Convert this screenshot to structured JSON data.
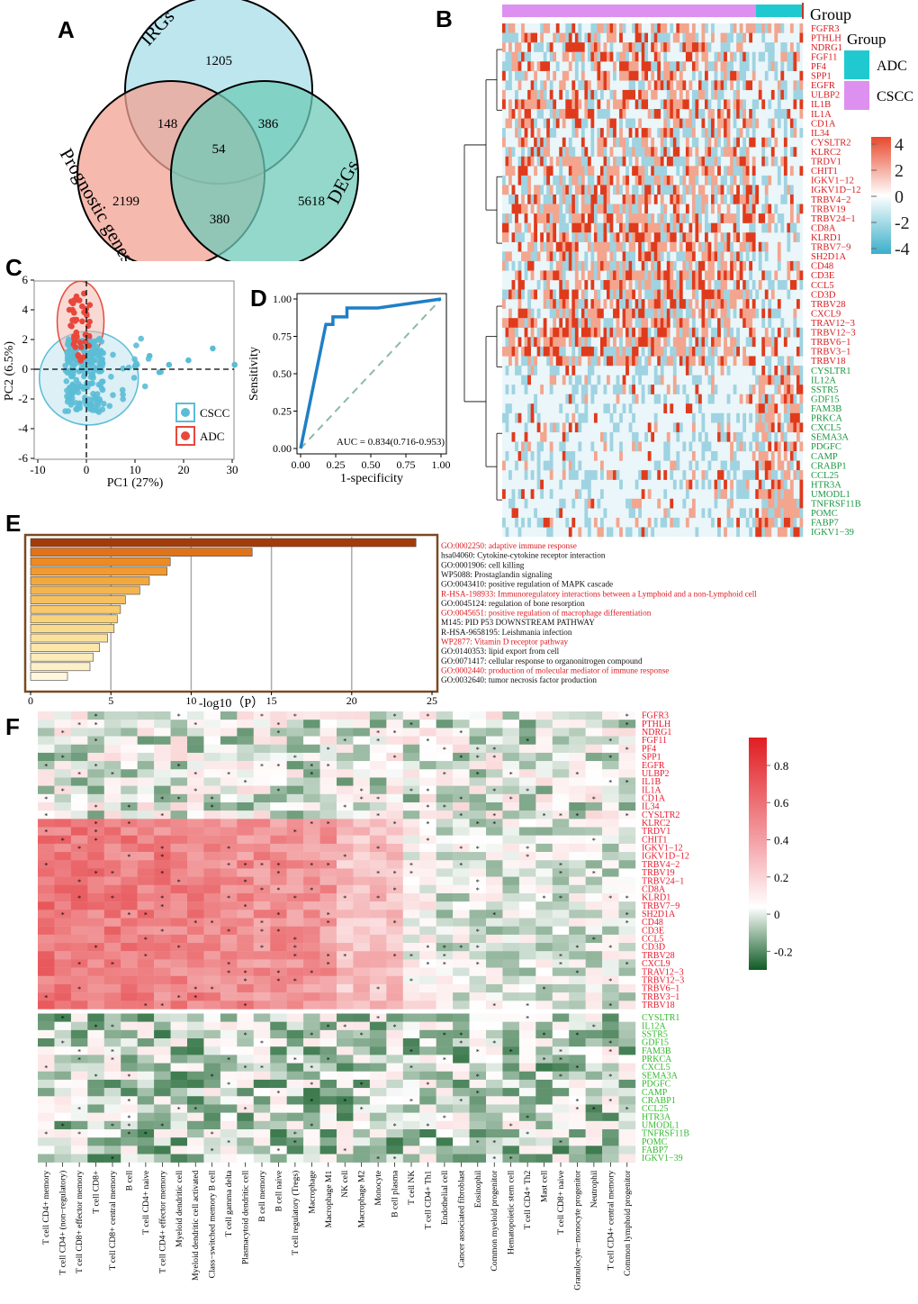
{
  "panel_labels": {
    "a": "A",
    "b": "B",
    "c": "C",
    "d": "D",
    "e": "E",
    "f": "F"
  },
  "venn": {
    "sets": [
      {
        "name": "IRGs",
        "color": "#a8dde9"
      },
      {
        "name": "Prognostic genes",
        "color": "#f1a193"
      },
      {
        "name": "DEGs",
        "color": "#6fcbb8"
      }
    ],
    "counts": {
      "irg_only": "1205",
      "prog_only": "2199",
      "deg_only": "5618",
      "irg_prog": "148",
      "irg_deg": "386",
      "prog_deg": "380",
      "all": "54"
    }
  },
  "heatmap_b": {
    "group_title": "Group",
    "legend_title": "Group",
    "groups": [
      {
        "name": "ADC",
        "color": "#20c9cf"
      },
      {
        "name": "CSCC",
        "color": "#dd90ef"
      }
    ],
    "scale_ticks": [
      "4",
      "2",
      "0",
      "-2",
      "-4"
    ],
    "genes_up": [
      "FGFR3",
      "PTHLH",
      "NDRG1",
      "FGF11",
      "PF4",
      "SPP1",
      "EGFR",
      "ULBP2",
      "IL1B",
      "IL1A",
      "CD1A",
      "IL34",
      "CYSLTR2",
      "KLRC2",
      "TRDV1",
      "CHIT1",
      "IGKV1−12",
      "IGKV1D−12",
      "TRBV4−2",
      "TRBV19",
      "TRBV24−1",
      "CD8A",
      "KLRD1",
      "TRBV7−9",
      "SH2D1A",
      "CD48",
      "CD3E",
      "CCL5",
      "CD3D",
      "TRBV28",
      "CXCL9",
      "TRAV12−3",
      "TRBV12−3",
      "TRBV6−1",
      "TRBV3−1",
      "TRBV18"
    ],
    "genes_down": [
      "CYSLTR1",
      "IL12A",
      "SSTR5",
      "GDF15",
      "FAM3B",
      "PRKCA",
      "CXCL5",
      "SEMA3A",
      "PDGFC",
      "CAMP",
      "CRABP1",
      "CCL25",
      "HTR3A",
      "UMODL1",
      "TNFRSF11B",
      "POMC",
      "FABP7",
      "IGKV1−39"
    ],
    "up_color": "#d7191c",
    "down_color": "#1a9641"
  },
  "pca": {
    "xlabel": "PC1 (27%)",
    "ylabel": "PC2 (6.5%)",
    "x_ticks": [
      "-10",
      "0",
      "10",
      "20",
      "30"
    ],
    "y_ticks": [
      "6",
      "4",
      "2",
      "0",
      "-2",
      "-4",
      "-6"
    ],
    "legend": [
      {
        "name": "CSCC",
        "color": "#5bbcd6"
      },
      {
        "name": "ADC",
        "color": "#e8483c"
      }
    ]
  },
  "chart_data": [
    {
      "type": "line",
      "xlabel": "1-specificity",
      "ylabel": "Sensitivity",
      "x_ticks": [
        "0.00",
        "0.25",
        "0.50",
        "0.75",
        "1.00"
      ],
      "y_ticks": [
        "1.00",
        "0.75",
        "0.50",
        "0.25",
        "0.00"
      ],
      "xlim": [
        0,
        1
      ],
      "ylim": [
        0,
        1
      ],
      "annotation": "AUC = 0.834(0.716-0.953)",
      "x": [
        0,
        0.18,
        0.18,
        0.23,
        0.23,
        0.28,
        0.28,
        0.33,
        0.33,
        0.55,
        1.0
      ],
      "y": [
        0,
        0.83,
        0.83,
        0.83,
        0.88,
        0.88,
        0.88,
        0.88,
        0.94,
        0.94,
        1.0
      ]
    },
    {
      "type": "bar",
      "xlabel": "-log10（P）",
      "x_ticks": [
        "0",
        "5",
        "10",
        "15",
        "20",
        "25"
      ],
      "xlim": [
        0,
        25
      ],
      "categories": [
        "GO:0002250: adaptive immune response",
        "hsa04060: Cytokine-cytokine receptor interaction",
        "GO:0001906: cell killing",
        "WP5088: Prostaglandin signaling",
        "GO:0043410: positive regulation of MAPK cascade",
        "R-HSA-198933: Immunoregulatory interactions between a Lymphoid and a non-Lymphoid cell",
        "GO:0045124: regulation of bone resorption",
        "GO:0045651: positive regulation of macrophage differentiation",
        "M145: PID P53 DOWNSTREAM PATHWAY",
        "R-HSA-9658195: Leishmania infection",
        "WP2877: Vitamin D receptor pathway",
        "GO:0140353: lipid export from cell",
        "GO:0071417: cellular response to organonitrogen compound",
        "GO:0002440: production of molecular mediator of immune response",
        "GO:0032640: tumor necrosis factor production"
      ],
      "values": [
        24.0,
        13.8,
        8.7,
        8.5,
        7.4,
        6.8,
        5.9,
        5.6,
        5.4,
        5.2,
        4.8,
        4.3,
        3.9,
        3.7,
        2.3
      ],
      "highlight": [
        true,
        false,
        false,
        false,
        false,
        true,
        false,
        true,
        false,
        false,
        true,
        false,
        false,
        true,
        false
      ]
    },
    {
      "type": "heatmap",
      "scale_ticks": [
        "0.8",
        "0.6",
        "0.4",
        "0.2",
        "0",
        "-0.2"
      ],
      "rows_up": [
        "FGFR3",
        "PTHLH",
        "NDRG1",
        "FGF11",
        "PF4",
        "SPP1",
        "EGFR",
        "ULBP2",
        "IL1B",
        "IL1A",
        "CD1A",
        "IL34",
        "CYSLTR2",
        "KLRC2",
        "TRDV1",
        "CHIT1",
        "IGKV1−12",
        "IGKV1D−12",
        "TRBV4−2",
        "TRBV19",
        "TRBV24−1",
        "CD8A",
        "KLRD1",
        "TRBV7−9",
        "SH2D1A",
        "CD48",
        "CD3E",
        "CCL5",
        "CD3D",
        "TRBV28",
        "CXCL9",
        "TRAV12−3",
        "TRBV12−3",
        "TRBV6−1",
        "TRBV3−1",
        "TRBV18"
      ],
      "rows_down": [
        "CYSLTR1",
        "IL12A",
        "SSTR5",
        "GDF15",
        "FAM3B",
        "PRKCA",
        "CXCL5",
        "SEMA3A",
        "PDGFC",
        "CAMP",
        "CRABP1",
        "CCL25",
        "HTR3A",
        "UMODL1",
        "TNFRSF11B",
        "POMC",
        "FABP7",
        "IGKV1−39"
      ],
      "columns": [
        "T cell CD4+ memory",
        "T cell CD4+ (non−regulatory)",
        "T cell CD8+ effector memory",
        "T cell CD8+",
        "T cell CD8+ central memory",
        "B cell",
        "T cell CD4+ naive",
        "T cell CD4+ effector memory",
        "Myeloid dendritic cell",
        "Myeloid dendritic cell activated",
        "Class−switched memory B cell",
        "T cell gamma delta",
        "Plasmacytoid dendritic cell",
        "B cell memory",
        "B cell naive",
        "T cell regulatory (Tregs)",
        "Macrophage",
        "Macrophage M1",
        "NK cell",
        "Macrophage M2",
        "Monocyte",
        "B cell plasma",
        "T cell NK",
        "T cell CD4+ Th1",
        "Endothelial cell",
        "Cancer associated fibroblast",
        "Eosinophil",
        "Common myeloid progenitor",
        "Hematopoietic stem cell",
        "T cell CD4+ Th2",
        "Mast cell",
        "T cell CD8+ naive",
        "Granulocyte−monocyte progenitor",
        "Neutrophil",
        "T cell CD4+ central memory",
        "Common lymphoid progenitor"
      ],
      "up_color": "#e8182c",
      "down_color": "#33b82e"
    }
  ]
}
